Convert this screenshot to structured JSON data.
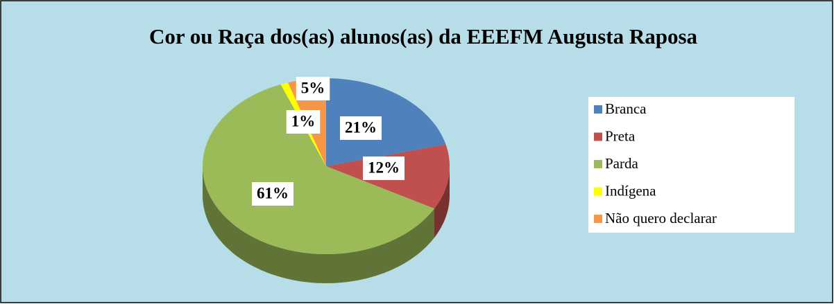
{
  "chart_data": {
    "type": "pie",
    "title": "Cor ou Raça dos(as) alunos(as) da EEEFM Augusta Raposa",
    "categories": [
      "Branca",
      "Preta",
      "Parda",
      "Indígena",
      "Não quero declarar"
    ],
    "values": [
      21,
      12,
      61,
      1,
      5
    ],
    "value_labels": [
      "21%",
      "12%",
      "61%",
      "1%",
      "5%"
    ],
    "colors": [
      "#4f81bd",
      "#c0504d",
      "#9bbb59",
      "#ffff00",
      "#f79646"
    ],
    "legend": "right"
  }
}
